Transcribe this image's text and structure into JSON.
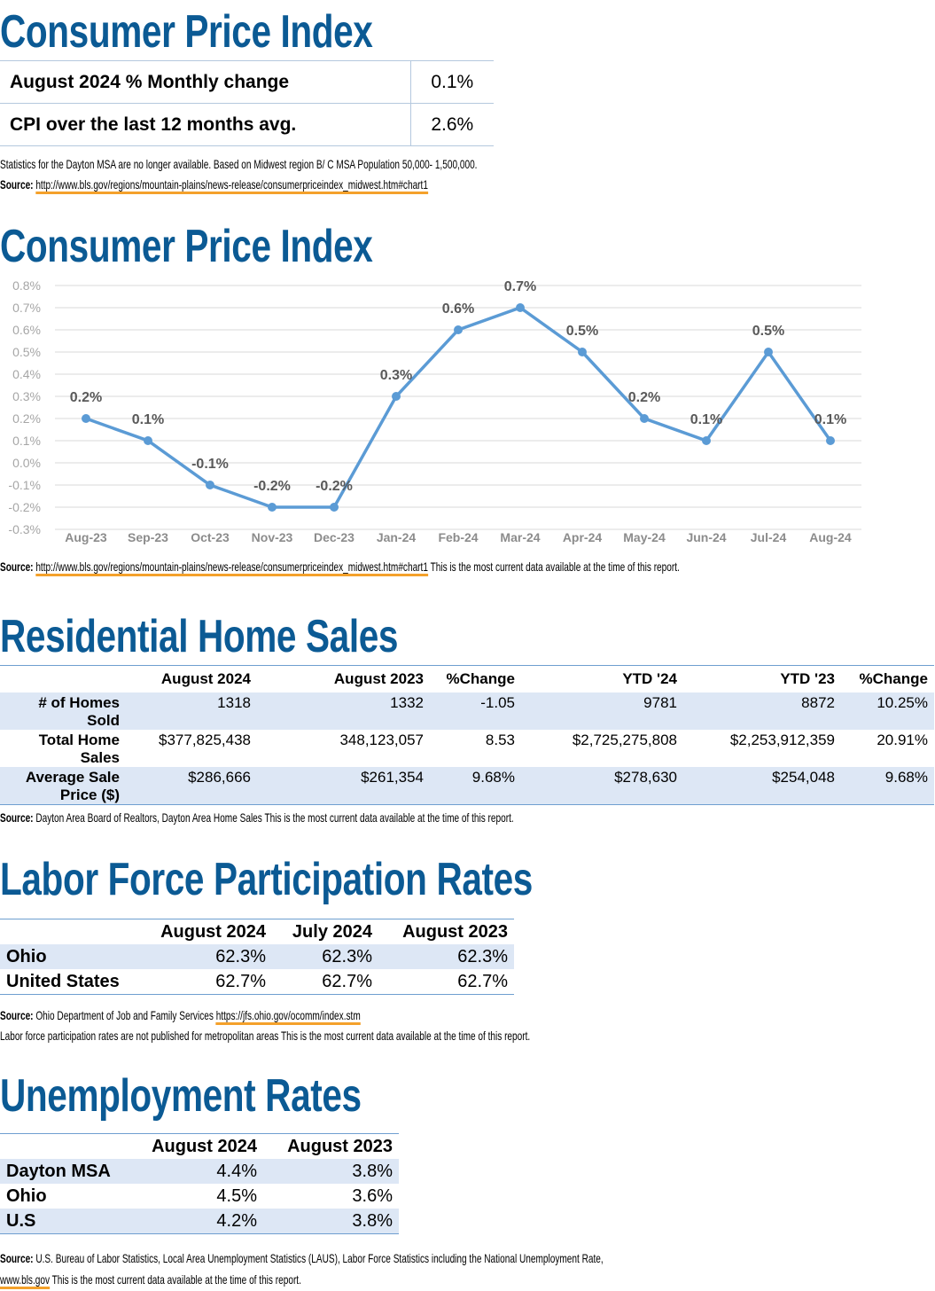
{
  "cpi_table": {
    "title": "Consumer Price Index",
    "rows": [
      {
        "label": "August 2024 % Monthly change",
        "value": "0.1%"
      },
      {
        "label": "CPI over the last 12 months avg.",
        "value": "2.6%"
      }
    ],
    "note": "Statistics for the Dayton MSA are no longer available. Based on Midwest region B/ C MSA Population 50,000- 1,500,000.",
    "source": {
      "label": "Source:",
      "link": "http://www.bls.gov/regions/mountain-plains/news-release/consumerpriceindex_midwest.htm#chart1"
    }
  },
  "chart_data": {
    "type": "line",
    "title": "Consumer Price Index",
    "categories": [
      "Aug-23",
      "Sep-23",
      "Oct-23",
      "Nov-23",
      "Dec-23",
      "Jan-24",
      "Feb-24",
      "Mar-24",
      "Apr-24",
      "May-24",
      "Jun-24",
      "Jul-24",
      "Aug-24"
    ],
    "series": [
      {
        "name": "CPI",
        "color": "#5b9bd5",
        "values": [
          0.2,
          0.1,
          -0.1,
          -0.2,
          -0.2,
          0.3,
          0.6,
          0.7,
          0.5,
          0.2,
          0.1,
          0.5,
          0.1
        ],
        "value_labels": [
          "0.2%",
          "0.1%",
          "-0.1%",
          "-0.2%",
          "-0.2%",
          "0.3%",
          "0.6%",
          "0.7%",
          "0.5%",
          "0.2%",
          "0.1%",
          "0.5%",
          "0.1%"
        ]
      }
    ],
    "ylim": [
      -0.3,
      0.8
    ],
    "yticks": [
      {
        "value": -0.3,
        "label": "-0.3%"
      },
      {
        "value": -0.2,
        "label": "-0.2%"
      },
      {
        "value": -0.1,
        "label": "-0.1%"
      },
      {
        "value": 0,
        "label": "0.0%"
      },
      {
        "value": 0.1,
        "label": "0.1%"
      },
      {
        "value": 0.2,
        "label": "0.2%"
      },
      {
        "value": 0.3,
        "label": "0.3%"
      },
      {
        "value": 0.4,
        "label": "0.4%"
      },
      {
        "value": 0.5,
        "label": "0.5%"
      },
      {
        "value": 0.6,
        "label": "0.6%"
      },
      {
        "value": 0.7,
        "label": "0.7%"
      },
      {
        "value": 0.8,
        "label": "0.8%"
      }
    ],
    "grid": true,
    "source": {
      "label": "Source:",
      "link": "http://www.bls.gov/regions/mountain-plains/news-release/consumerpriceindex_midwest.htm#chart1",
      "text": "This is the most current data available at the time of this report."
    }
  },
  "residential_home_sales": {
    "title": "Residential Home Sales",
    "columns": [
      "August 2024",
      "August 2023",
      "%Change",
      "YTD '24",
      "YTD '23",
      "%Change"
    ],
    "rows": [
      {
        "label": "# of Homes Sold",
        "cells": [
          "1318",
          "1332",
          "-1.05",
          "9781",
          "8872",
          "10.25%"
        ]
      },
      {
        "label": "Total Home Sales",
        "cells": [
          "$377,825,438",
          "348,123,057",
          "8.53",
          "$2,725,275,808",
          "$2,253,912,359",
          "20.91%"
        ]
      },
      {
        "label": "Average Sale Price ($)",
        "cells": [
          "$286,666",
          "$261,354",
          "9.68%",
          "$278,630",
          "$254,048",
          "9.68%"
        ]
      }
    ],
    "source": {
      "label": "Source:",
      "text": "Dayton Area Board of Realtors, Dayton Area Home Sales This is the most current data available at the time of this report."
    }
  },
  "labor_force": {
    "title": "Labor Force Participation Rates",
    "columns": [
      "August 2024",
      "July 2024",
      "August 2023"
    ],
    "rows": [
      {
        "label": "Ohio",
        "cells": [
          "62.3%",
          "62.3%",
          "62.3%"
        ]
      },
      {
        "label": "United States",
        "cells": [
          "62.7%",
          "62.7%",
          "62.7%"
        ]
      }
    ],
    "source": {
      "label": "Source:",
      "text": "Ohio Department of Job and Family Services",
      "link": "https://jfs.ohio.gov/ocomm/index.stm"
    },
    "note": "Labor force participation rates are not published for metropolitan areas This is the most current data available at the time of this report."
  },
  "unemployment": {
    "title": "Unemployment Rates",
    "columns": [
      "August 2024",
      "August 2023"
    ],
    "rows": [
      {
        "label": "Dayton MSA",
        "cells": [
          "4.4%",
          "3.8%"
        ]
      },
      {
        "label": "Ohio",
        "cells": [
          "4.5%",
          "3.6%"
        ]
      },
      {
        "label": "U.S",
        "cells": [
          "4.2%",
          "3.8%"
        ]
      }
    ],
    "source": {
      "label": "Source:",
      "text": "U.S. Bureau of Labor Statistics, Local Area Unemployment Statistics (LAUS), Labor Force Statistics including the National Unemployment Rate,",
      "link": "www.bls.gov",
      "text2": "This is the most current data available at the time of this report."
    }
  }
}
